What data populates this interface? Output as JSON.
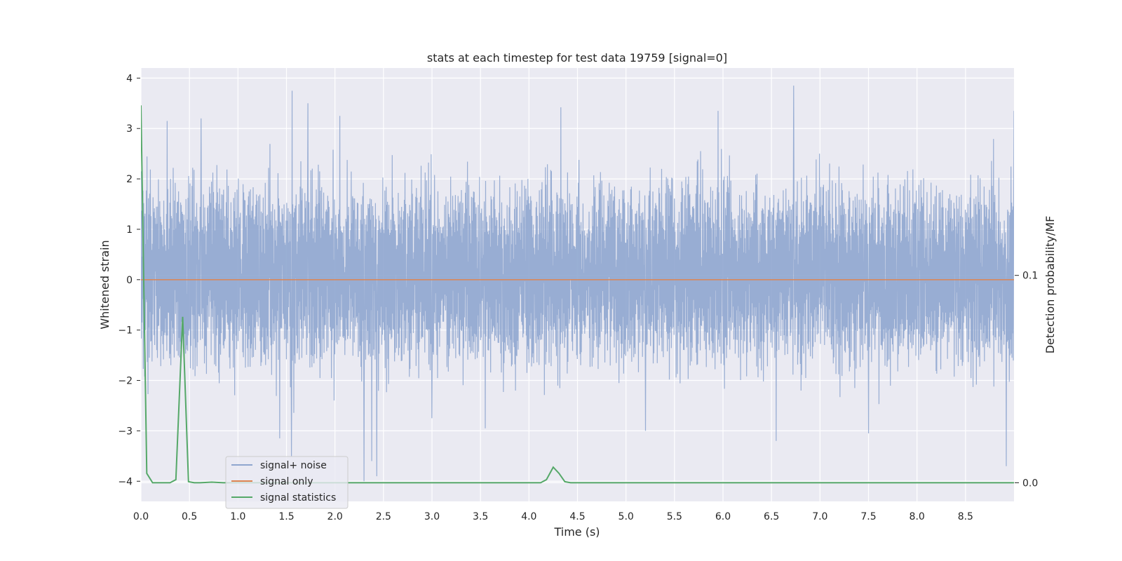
{
  "chart_data": {
    "type": "line",
    "title": "stats at each timestep for test data 19759 [signal=0]",
    "xlabel": "Time (s)",
    "ylabel": "Whitened strain",
    "y2label": "Detection probability/MF",
    "xlim": [
      0.0,
      9.0
    ],
    "ylim": [
      -4.4,
      4.2
    ],
    "y2lim": [
      -0.009,
      0.2
    ],
    "x_ticks": [
      0.0,
      0.5,
      1.0,
      1.5,
      2.0,
      2.5,
      3.0,
      3.5,
      4.0,
      4.5,
      5.0,
      5.5,
      6.0,
      6.5,
      7.0,
      7.5,
      8.0,
      8.5
    ],
    "x_tick_labels": [
      "0.0",
      "0.5",
      "1.0",
      "1.5",
      "2.0",
      "2.5",
      "3.0",
      "3.5",
      "4.0",
      "4.5",
      "5.0",
      "5.5",
      "6.0",
      "6.5",
      "7.0",
      "7.5",
      "8.0",
      "8.5"
    ],
    "y_ticks": [
      -4,
      -3,
      -2,
      -1,
      0,
      1,
      2,
      3,
      4
    ],
    "y_tick_labels": [
      "−4",
      "−3",
      "−2",
      "−1",
      "0",
      "1",
      "2",
      "3",
      "4"
    ],
    "y2_ticks": [
      0.0,
      0.1
    ],
    "y2_tick_labels": [
      "0.0",
      "0.1"
    ],
    "grid": true,
    "legend_position": "lower-left",
    "series": [
      {
        "name": "signal+ noise",
        "axis": "left",
        "color": "#8fa6cf",
        "kind": "noise",
        "x_range": [
          0.0,
          9.0
        ],
        "typical_range": [
          -1.5,
          1.7
        ],
        "peaks": [
          {
            "x": 0.27,
            "y": 3.15
          },
          {
            "x": 0.62,
            "y": 3.2
          },
          {
            "x": 1.56,
            "y": 3.75
          },
          {
            "x": 1.72,
            "y": 3.5
          },
          {
            "x": 2.05,
            "y": 3.25
          },
          {
            "x": 4.33,
            "y": 3.42
          },
          {
            "x": 5.95,
            "y": 3.35
          },
          {
            "x": 6.73,
            "y": 3.85
          },
          {
            "x": 9.0,
            "y": 3.35
          },
          {
            "x": 1.55,
            "y": -3.5
          },
          {
            "x": 2.3,
            "y": -4.0
          },
          {
            "x": 2.38,
            "y": -3.6
          },
          {
            "x": 2.43,
            "y": -3.9
          },
          {
            "x": 3.0,
            "y": -2.75
          },
          {
            "x": 3.55,
            "y": -2.95
          },
          {
            "x": 5.2,
            "y": -3.0
          },
          {
            "x": 6.55,
            "y": -3.2
          },
          {
            "x": 7.5,
            "y": -3.05
          },
          {
            "x": 8.92,
            "y": -3.7
          },
          {
            "x": 1.43,
            "y": -3.15
          }
        ]
      },
      {
        "name": "signal only",
        "axis": "left",
        "color": "#dd8452",
        "x": [
          0.0,
          9.0
        ],
        "y": [
          0.0,
          0.0
        ]
      },
      {
        "name": "signal statistics",
        "axis": "right",
        "color": "#55a868",
        "x": [
          0.0,
          0.06,
          0.12,
          0.18,
          0.24,
          0.3,
          0.36,
          0.43,
          0.49,
          0.55,
          0.61,
          0.73,
          0.85,
          1.5,
          2.0,
          4.0,
          4.12,
          4.18,
          4.25,
          4.31,
          4.37,
          4.43,
          4.5,
          9.0
        ],
        "y": [
          0.182,
          0.0045,
          0.0,
          0.0,
          0.0,
          0.0,
          0.0015,
          0.08,
          0.0005,
          0.0,
          0.0,
          0.0003,
          0.0,
          0.0,
          0.0,
          0.0,
          0.0,
          0.0015,
          0.0075,
          0.0045,
          0.0005,
          0.0,
          0.0,
          0.0
        ]
      }
    ]
  }
}
